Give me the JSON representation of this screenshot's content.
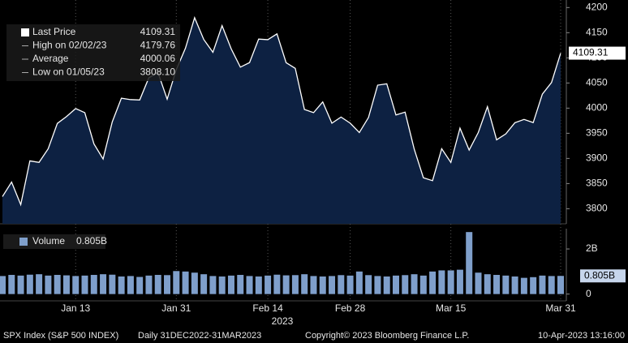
{
  "chart_data": [
    {
      "type": "area",
      "categories": [
        null,
        null,
        null,
        null,
        null,
        null,
        null,
        null,
        "Jan 13",
        null,
        null,
        null,
        null,
        null,
        null,
        null,
        null,
        null,
        null,
        "Jan 31",
        null,
        null,
        null,
        null,
        null,
        null,
        null,
        null,
        null,
        "Feb 14",
        null,
        null,
        null,
        null,
        null,
        null,
        null,
        null,
        "Feb 28",
        null,
        null,
        null,
        null,
        null,
        null,
        null,
        null,
        null,
        null,
        "Mar 15",
        null,
        null,
        null,
        null,
        null,
        null,
        null,
        null,
        null,
        null,
        null,
        "Mar 31"
      ],
      "x_label": "2023",
      "series": [
        {
          "name": "Last Price",
          "color": "#ffffff",
          "fill": "#0d2142",
          "values": [
            3824.14,
            3852.97,
            3808.1,
            3895.08,
            3892.09,
            3919.25,
            3969.61,
            3983.17,
            3999.09,
            3990.97,
            3928.86,
            3898.85,
            3972.61,
            4019.81,
            4016.95,
            4016.22,
            4060.43,
            4070.56,
            4017.77,
            4076.6,
            4119.21,
            4179.76,
            4136.48,
            4111.08,
            4164.0,
            4117.86,
            4081.5,
            4090.46,
            4137.29,
            4136.13,
            4147.6,
            4090.41,
            4079.09,
            3997.34,
            3991.05,
            4012.32,
            3970.04,
            3982.24,
            3970.15,
            3951.39,
            3981.35,
            4045.64,
            4048.42,
            3986.37,
            3992.01,
            3918.32,
            3861.59,
            3855.76,
            3919.29,
            3891.93,
            3960.28,
            3916.64,
            3951.57,
            4002.87,
            3936.97,
            3948.72,
            3970.99,
            3977.53,
            3971.27,
            4027.81,
            4050.83,
            4109.31
          ]
        }
      ],
      "legend_items": [
        {
          "label": "Last Price",
          "value": 4109.31
        },
        {
          "label": "High on 02/02/23",
          "value": 4179.76
        },
        {
          "label": "Average",
          "value": 4000.06
        },
        {
          "label": "Low on 01/05/23",
          "value": 3808.1,
          "value_label": "3808.10"
        }
      ],
      "ylim": [
        3770,
        4215
      ],
      "yticks": [
        3800,
        3850,
        3900,
        3950,
        4000,
        4050,
        4100,
        4150,
        4200
      ],
      "grid": true
    },
    {
      "type": "bar",
      "series": [
        {
          "name": "Volume",
          "color": "#7f9fcb",
          "values": [
            0.8,
            0.85,
            0.82,
            0.86,
            0.88,
            0.82,
            0.85,
            0.83,
            0.8,
            0.82,
            0.85,
            0.88,
            0.86,
            0.78,
            0.8,
            0.76,
            0.82,
            0.85,
            0.84,
            1.02,
            1.0,
            0.95,
            0.88,
            0.8,
            0.78,
            0.82,
            0.85,
            0.8,
            0.78,
            0.82,
            0.86,
            0.83,
            0.84,
            0.88,
            0.8,
            0.78,
            0.8,
            0.84,
            0.82,
            1.0,
            0.84,
            0.8,
            0.78,
            0.82,
            0.84,
            0.88,
            0.82,
            1.0,
            1.05,
            1.05,
            1.08,
            2.75,
            0.95,
            0.88,
            0.85,
            0.82,
            0.78,
            0.72,
            0.75,
            0.82,
            0.8,
            0.805
          ],
          "value_labels": [
            null,
            null,
            null,
            null,
            null,
            null,
            null,
            null,
            null,
            null,
            null,
            null,
            null,
            null,
            null,
            null,
            null,
            null,
            null,
            null,
            null,
            null,
            null,
            null,
            null,
            null,
            null,
            null,
            null,
            null,
            null,
            null,
            null,
            null,
            null,
            null,
            null,
            null,
            null,
            null,
            null,
            null,
            null,
            null,
            null,
            null,
            null,
            null,
            null,
            null,
            null,
            null,
            null,
            null,
            null,
            null,
            null,
            null,
            null,
            null,
            null,
            "0.805B"
          ]
        }
      ],
      "ylim": [
        -0.3,
        2.9
      ],
      "yticks": [
        0,
        {
          "value": 2,
          "label": "2B"
        }
      ]
    }
  ],
  "footer": {
    "security": "SPX Index (S&P 500 INDEX)",
    "period": "Daily 31DEC2022-31MAR2023",
    "copyright": "Copyright© 2023 Bloomberg Finance L.P.",
    "timestamp": "10-Apr-2023 13:16:00"
  }
}
